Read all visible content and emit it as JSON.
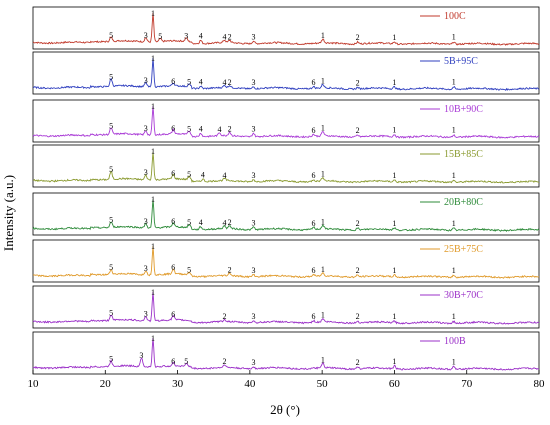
{
  "chart_data": {
    "type": "line",
    "xlabel": "2θ (°)",
    "ylabel": "Intensity (a.u.)",
    "xlim": [
      10,
      80
    ],
    "xticks": [
      10,
      20,
      30,
      40,
      50,
      60,
      70,
      80
    ],
    "stacked": true,
    "grid": false,
    "legend_position": "inside each panel, top-right",
    "panels": [
      {
        "name": "100C",
        "color": "#c0392b",
        "peaks": [
          [
            20.8,
            0.14,
            "5"
          ],
          [
            25.6,
            0.14,
            "3"
          ],
          [
            26.6,
            0.95,
            "1"
          ],
          [
            27.6,
            0.1,
            "5"
          ],
          [
            31.2,
            0.12,
            "3"
          ],
          [
            33.2,
            0.11,
            "4"
          ],
          [
            36.5,
            0.08,
            "4"
          ],
          [
            37.2,
            0.08,
            "2"
          ],
          [
            40.5,
            0.09,
            "3"
          ],
          [
            50.1,
            0.13,
            "1"
          ],
          [
            54.9,
            0.06,
            "2"
          ],
          [
            60.0,
            0.07,
            "1"
          ],
          [
            68.2,
            0.08,
            "1"
          ]
        ]
      },
      {
        "name": "5B+95C",
        "color": "#2f3fbf",
        "peaks": [
          [
            20.8,
            0.25,
            "5"
          ],
          [
            25.6,
            0.14,
            "3"
          ],
          [
            26.6,
            0.95,
            "1"
          ],
          [
            29.4,
            0.1,
            "6"
          ],
          [
            31.6,
            0.08,
            "5"
          ],
          [
            33.2,
            0.08,
            "4"
          ],
          [
            36.5,
            0.07,
            "4"
          ],
          [
            37.2,
            0.07,
            "2"
          ],
          [
            40.5,
            0.06,
            "3"
          ],
          [
            48.8,
            0.06,
            "6"
          ],
          [
            50.1,
            0.12,
            "1"
          ],
          [
            54.9,
            0.05,
            "2"
          ],
          [
            60.0,
            0.07,
            "1"
          ],
          [
            68.2,
            0.08,
            "1"
          ]
        ]
      },
      {
        "name": "10B+90C",
        "color": "#a93ad6",
        "peaks": [
          [
            20.8,
            0.22,
            "5"
          ],
          [
            25.6,
            0.14,
            "3"
          ],
          [
            26.6,
            0.95,
            "1"
          ],
          [
            29.4,
            0.14,
            "6"
          ],
          [
            31.6,
            0.12,
            "5"
          ],
          [
            33.2,
            0.12,
            "4"
          ],
          [
            35.8,
            0.1,
            "4"
          ],
          [
            37.2,
            0.12,
            "2"
          ],
          [
            40.5,
            0.12,
            "3"
          ],
          [
            48.8,
            0.07,
            "6"
          ],
          [
            50.1,
            0.15,
            "1"
          ],
          [
            54.9,
            0.06,
            "2"
          ],
          [
            60.0,
            0.08,
            "1"
          ],
          [
            68.2,
            0.08,
            "1"
          ]
        ]
      },
      {
        "name": "15B+85C",
        "color": "#8a9a2f",
        "peaks": [
          [
            20.8,
            0.26,
            "5"
          ],
          [
            25.6,
            0.16,
            "3"
          ],
          [
            26.6,
            0.95,
            "1"
          ],
          [
            29.4,
            0.14,
            "6"
          ],
          [
            31.6,
            0.1,
            "5"
          ],
          [
            33.5,
            0.09,
            "4"
          ],
          [
            36.5,
            0.07,
            "4"
          ],
          [
            40.5,
            0.07,
            "3"
          ],
          [
            48.8,
            0.06,
            "6"
          ],
          [
            50.1,
            0.12,
            "1"
          ],
          [
            60.0,
            0.06,
            "1"
          ],
          [
            68.2,
            0.07,
            "1"
          ]
        ]
      },
      {
        "name": "20B+80C",
        "color": "#2e8b3a",
        "peaks": [
          [
            20.8,
            0.18,
            "5"
          ],
          [
            25.6,
            0.14,
            "3"
          ],
          [
            26.6,
            0.95,
            "1"
          ],
          [
            29.4,
            0.14,
            "6"
          ],
          [
            31.6,
            0.1,
            "5"
          ],
          [
            33.2,
            0.1,
            "4"
          ],
          [
            36.5,
            0.09,
            "4"
          ],
          [
            37.2,
            0.1,
            "2"
          ],
          [
            40.5,
            0.09,
            "3"
          ],
          [
            48.8,
            0.07,
            "6"
          ],
          [
            50.1,
            0.12,
            "1"
          ],
          [
            54.9,
            0.06,
            "2"
          ],
          [
            60.0,
            0.07,
            "1"
          ],
          [
            68.2,
            0.07,
            "1"
          ]
        ]
      },
      {
        "name": "25B+75C",
        "color": "#e09a2a",
        "peaks": [
          [
            20.8,
            0.16,
            "5"
          ],
          [
            25.6,
            0.14,
            "3"
          ],
          [
            26.6,
            0.95,
            "1"
          ],
          [
            29.4,
            0.16,
            "6"
          ],
          [
            31.6,
            0.08,
            "5"
          ],
          [
            37.2,
            0.09,
            "2"
          ],
          [
            40.5,
            0.07,
            "3"
          ],
          [
            48.8,
            0.06,
            "6"
          ],
          [
            50.1,
            0.1,
            "1"
          ],
          [
            54.9,
            0.06,
            "2"
          ],
          [
            60.0,
            0.06,
            "1"
          ],
          [
            68.2,
            0.07,
            "1"
          ]
        ]
      },
      {
        "name": "30B+70C",
        "color": "#9b30c8",
        "peaks": [
          [
            20.8,
            0.18,
            "5"
          ],
          [
            25.6,
            0.15,
            "3"
          ],
          [
            26.6,
            0.95,
            "1"
          ],
          [
            29.4,
            0.14,
            "6"
          ],
          [
            36.5,
            0.07,
            "2"
          ],
          [
            40.5,
            0.07,
            "3"
          ],
          [
            48.8,
            0.06,
            "6"
          ],
          [
            50.1,
            0.11,
            "1"
          ],
          [
            54.9,
            0.06,
            "2"
          ],
          [
            60.0,
            0.06,
            "1"
          ],
          [
            68.2,
            0.06,
            "1"
          ]
        ]
      },
      {
        "name": "100B",
        "color": "#9b30c8",
        "peaks": [
          [
            20.8,
            0.18,
            "5"
          ],
          [
            25.0,
            0.3,
            "3"
          ],
          [
            26.6,
            0.95,
            "1"
          ],
          [
            29.4,
            0.1,
            "6"
          ],
          [
            31.2,
            0.1,
            "5"
          ],
          [
            36.5,
            0.1,
            "2"
          ],
          [
            40.5,
            0.07,
            "3"
          ],
          [
            50.1,
            0.15,
            "1"
          ],
          [
            54.9,
            0.07,
            "2"
          ],
          [
            60.0,
            0.1,
            "1"
          ],
          [
            68.2,
            0.09,
            "1"
          ]
        ]
      }
    ]
  }
}
